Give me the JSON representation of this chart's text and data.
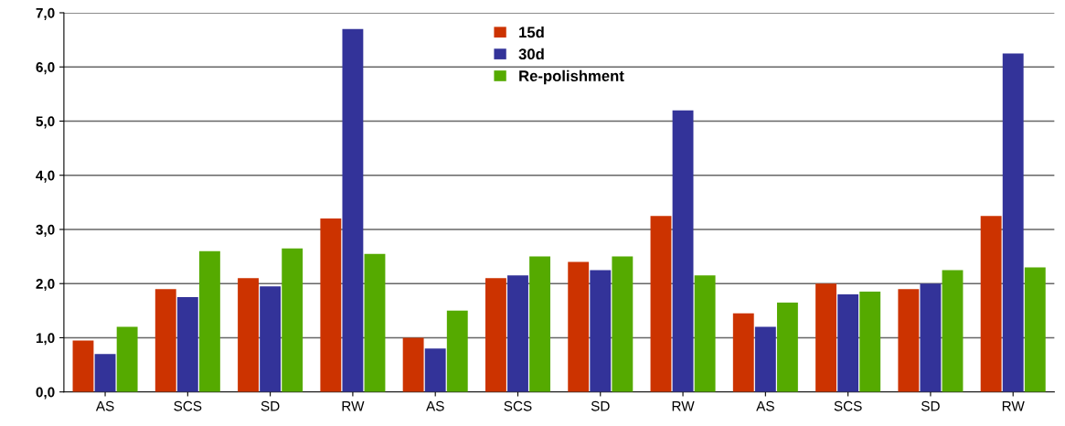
{
  "chart_data": {
    "type": "bar",
    "categories": [
      "AS",
      "SCS",
      "SD",
      "RW",
      "AS",
      "SCS",
      "SD",
      "RW",
      "AS",
      "SCS",
      "SD",
      "RW"
    ],
    "series": [
      {
        "name": "15d",
        "color": "#cc3300",
        "values": [
          0.95,
          1.9,
          2.1,
          3.2,
          1.0,
          2.1,
          2.4,
          3.25,
          1.45,
          2.0,
          1.9,
          3.25
        ]
      },
      {
        "name": "30d",
        "color": "#333399",
        "values": [
          0.7,
          1.75,
          1.95,
          6.7,
          0.8,
          2.15,
          2.25,
          5.2,
          1.2,
          1.8,
          2.0,
          6.25
        ]
      },
      {
        "name": "Re-polishment",
        "color": "#55aa00",
        "values": [
          1.2,
          2.6,
          2.65,
          2.55,
          1.5,
          2.5,
          2.5,
          2.15,
          1.65,
          1.85,
          2.25,
          2.3
        ]
      }
    ],
    "ylim": [
      0,
      7
    ],
    "yticks": [
      {
        "value": 0,
        "label": "0,0"
      },
      {
        "value": 1,
        "label": "1,0"
      },
      {
        "value": 2,
        "label": "2,0"
      },
      {
        "value": 3,
        "label": "3,0"
      },
      {
        "value": 4,
        "label": "4,0"
      },
      {
        "value": 5,
        "label": "5,0"
      },
      {
        "value": 6,
        "label": "6,0"
      },
      {
        "value": 7,
        "label": "7,0"
      }
    ],
    "grid": "y",
    "legend": "top"
  }
}
